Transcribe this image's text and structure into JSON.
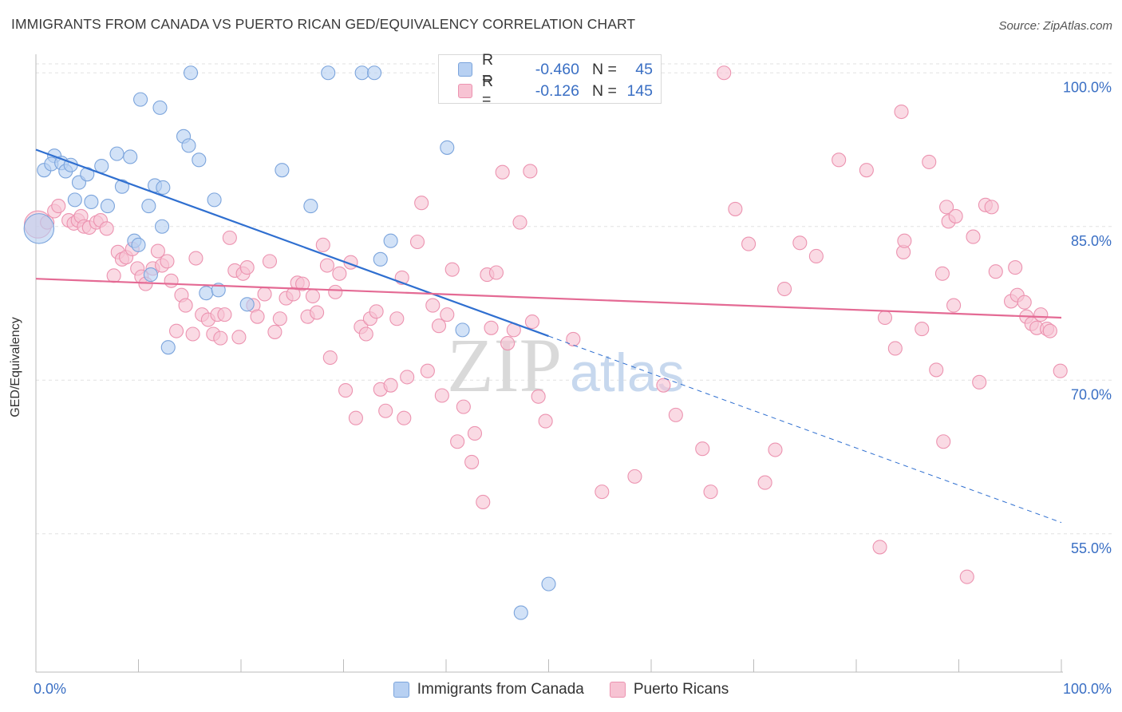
{
  "header": {
    "title": "IMMIGRANTS FROM CANADA VS PUERTO RICAN GED/EQUIVALENCY CORRELATION CHART",
    "source": "Source: ZipAtlas.com"
  },
  "watermark": {
    "zip": "ZIP",
    "atlas": "atlas"
  },
  "legend": {
    "rows": [
      {
        "r_label": "R =",
        "r_value": "-0.460",
        "n_label": "N =",
        "n_value": "45"
      },
      {
        "r_label": "R =",
        "r_value": "-0.126",
        "n_label": "N =",
        "n_value": "145"
      }
    ]
  },
  "bottom_legend": {
    "canada": "Immigrants from Canada",
    "puerto": "Puerto Ricans"
  },
  "colors": {
    "canada_fill": "#b7d0f2",
    "canada_stroke": "#7ba4dc",
    "canada_line": "#2f6fd0",
    "puerto_fill": "#f7c3d3",
    "puerto_stroke": "#ec93b0",
    "puerto_line": "#e46a94",
    "tick_text": "#3a6fc4",
    "grid": "#e2e2e2"
  },
  "chart_data": {
    "type": "scatter",
    "title": "IMMIGRANTS FROM CANADA VS PUERTO RICAN GED/EQUIVALENCY CORRELATION CHART",
    "xlabel": "",
    "ylabel": "GED/Equivalency",
    "xlim": [
      0,
      100
    ],
    "ylim": [
      41.5,
      101.5
    ],
    "x_tick_labels": [
      "0.0%",
      "100.0%"
    ],
    "y_ticks": [
      {
        "value": 100,
        "label": "100.0%"
      },
      {
        "value": 85,
        "label": "85.0%"
      },
      {
        "value": 70,
        "label": "70.0%"
      },
      {
        "value": 55,
        "label": "55.0%"
      }
    ],
    "grid": true,
    "legend_position": "top-center",
    "series": [
      {
        "name": "Immigrants from Canada",
        "color": "#b7d0f2",
        "trend": {
          "x0": 0,
          "y0": 92.5,
          "x1": 50,
          "y1": 74.3,
          "dashed_to_x": 100,
          "dashed_to_y": 56.1
        },
        "points": [
          [
            0.3,
            84.8,
            2.2
          ],
          [
            0.8,
            90.5,
            1
          ],
          [
            1.8,
            91.9,
            1
          ],
          [
            1.5,
            91.1,
            1
          ],
          [
            2.5,
            91.2,
            1
          ],
          [
            2.9,
            90.4,
            1
          ],
          [
            3.4,
            91.0,
            1
          ],
          [
            4.2,
            89.3,
            1
          ],
          [
            3.8,
            87.6,
            1
          ],
          [
            5.0,
            90.1,
            1
          ],
          [
            5.4,
            87.4,
            1
          ],
          [
            6.4,
            90.9,
            1
          ],
          [
            7.0,
            87.0,
            1
          ],
          [
            7.9,
            92.1,
            1
          ],
          [
            8.4,
            88.9,
            1
          ],
          [
            9.2,
            91.8,
            1
          ],
          [
            9.6,
            83.6,
            1
          ],
          [
            10.0,
            83.2,
            1
          ],
          [
            10.2,
            97.4,
            1
          ],
          [
            11.0,
            87.0,
            1
          ],
          [
            11.2,
            80.3,
            1
          ],
          [
            11.6,
            89.0,
            1
          ],
          [
            12.1,
            96.6,
            1
          ],
          [
            12.3,
            85.0,
            1
          ],
          [
            12.4,
            88.8,
            1
          ],
          [
            12.9,
            73.2,
            1
          ],
          [
            14.4,
            93.8,
            1
          ],
          [
            14.9,
            92.9,
            1
          ],
          [
            15.1,
            100.0,
            1
          ],
          [
            15.9,
            91.5,
            1
          ],
          [
            16.6,
            78.5,
            1
          ],
          [
            17.4,
            87.6,
            1
          ],
          [
            17.8,
            78.8,
            1
          ],
          [
            20.6,
            77.4,
            1
          ],
          [
            24.0,
            90.5,
            1
          ],
          [
            26.8,
            87.0,
            1
          ],
          [
            28.5,
            100.0,
            1
          ],
          [
            31.8,
            100.0,
            1
          ],
          [
            33.0,
            100.0,
            1
          ],
          [
            33.6,
            81.8,
            1
          ],
          [
            34.6,
            83.6,
            1
          ],
          [
            40.1,
            92.7,
            1
          ],
          [
            41.6,
            74.9,
            1
          ],
          [
            47.3,
            47.3,
            1
          ],
          [
            50.0,
            50.1,
            1
          ]
        ]
      },
      {
        "name": "Puerto Ricans",
        "color": "#f7c3d3",
        "trend": {
          "x0": 0,
          "y0": 79.9,
          "x1": 100,
          "y1": 76.1
        },
        "points": [
          [
            0.2,
            85.2,
            2.0
          ],
          [
            1.1,
            85.4,
            1
          ],
          [
            1.8,
            86.5,
            1
          ],
          [
            2.2,
            87.0,
            1
          ],
          [
            3.2,
            85.6,
            1
          ],
          [
            3.7,
            85.3,
            1
          ],
          [
            4.1,
            85.6,
            1
          ],
          [
            4.4,
            86.0,
            1
          ],
          [
            4.7,
            85.0,
            1
          ],
          [
            5.2,
            84.9,
            1
          ],
          [
            5.9,
            85.4,
            1
          ],
          [
            6.3,
            85.6,
            1
          ],
          [
            6.9,
            84.8,
            1
          ],
          [
            7.6,
            80.2,
            1
          ],
          [
            8.0,
            82.5,
            1
          ],
          [
            8.4,
            81.8,
            1
          ],
          [
            8.8,
            82.0,
            1
          ],
          [
            9.4,
            82.8,
            1
          ],
          [
            9.9,
            80.9,
            1
          ],
          [
            10.3,
            80.1,
            1
          ],
          [
            10.7,
            79.4,
            1
          ],
          [
            11.4,
            80.9,
            1
          ],
          [
            11.9,
            82.6,
            1
          ],
          [
            12.3,
            81.2,
            1
          ],
          [
            12.8,
            81.6,
            1
          ],
          [
            13.2,
            79.7,
            1
          ],
          [
            13.7,
            74.8,
            1
          ],
          [
            14.2,
            78.3,
            1
          ],
          [
            14.6,
            77.3,
            1
          ],
          [
            15.3,
            74.5,
            1
          ],
          [
            15.6,
            81.9,
            1
          ],
          [
            16.2,
            76.4,
            1
          ],
          [
            16.8,
            75.9,
            1
          ],
          [
            17.3,
            74.5,
            1
          ],
          [
            17.7,
            76.4,
            1
          ],
          [
            18.0,
            74.1,
            1
          ],
          [
            18.4,
            76.4,
            1
          ],
          [
            18.9,
            83.9,
            1
          ],
          [
            19.4,
            80.7,
            1
          ],
          [
            19.8,
            74.2,
            1
          ],
          [
            20.2,
            80.4,
            1
          ],
          [
            20.6,
            81.0,
            1
          ],
          [
            21.2,
            77.3,
            1
          ],
          [
            21.6,
            76.2,
            1
          ],
          [
            22.3,
            78.4,
            1
          ],
          [
            22.8,
            81.6,
            1
          ],
          [
            23.3,
            74.7,
            1
          ],
          [
            23.8,
            76.0,
            1
          ],
          [
            24.4,
            78.0,
            1
          ],
          [
            25.1,
            78.4,
            1
          ],
          [
            25.5,
            79.5,
            1
          ],
          [
            26.0,
            79.4,
            1
          ],
          [
            26.5,
            76.2,
            1
          ],
          [
            27.0,
            78.2,
            1
          ],
          [
            27.4,
            76.6,
            1
          ],
          [
            28.0,
            83.2,
            1
          ],
          [
            28.4,
            81.2,
            1
          ],
          [
            28.7,
            72.2,
            1
          ],
          [
            29.2,
            78.6,
            1
          ],
          [
            29.6,
            80.4,
            1
          ],
          [
            30.2,
            69.0,
            1
          ],
          [
            30.7,
            81.5,
            1
          ],
          [
            31.2,
            66.3,
            1
          ],
          [
            31.7,
            75.2,
            1
          ],
          [
            32.2,
            74.5,
            1
          ],
          [
            32.6,
            76.0,
            1
          ],
          [
            33.2,
            76.7,
            1
          ],
          [
            33.6,
            69.1,
            1
          ],
          [
            34.1,
            67.0,
            1
          ],
          [
            34.6,
            69.5,
            1
          ],
          [
            35.2,
            76.0,
            1
          ],
          [
            35.7,
            80.0,
            1
          ],
          [
            35.9,
            66.3,
            1
          ],
          [
            36.2,
            70.3,
            1
          ],
          [
            37.2,
            83.5,
            1
          ],
          [
            37.6,
            87.3,
            1
          ],
          [
            38.2,
            70.9,
            1
          ],
          [
            38.7,
            77.3,
            1
          ],
          [
            39.3,
            75.3,
            1
          ],
          [
            39.6,
            68.5,
            1
          ],
          [
            40.1,
            76.4,
            1
          ],
          [
            40.6,
            80.8,
            1
          ],
          [
            41.1,
            64.0,
            1
          ],
          [
            41.7,
            67.4,
            1
          ],
          [
            42.5,
            62.0,
            1
          ],
          [
            42.8,
            64.8,
            1
          ],
          [
            43.6,
            58.1,
            1
          ],
          [
            44.0,
            80.3,
            1
          ],
          [
            44.4,
            75.1,
            1
          ],
          [
            44.9,
            80.5,
            1
          ],
          [
            45.5,
            90.3,
            1
          ],
          [
            46.0,
            73.6,
            1
          ],
          [
            46.6,
            74.9,
            1
          ],
          [
            47.2,
            85.4,
            1
          ],
          [
            48.2,
            90.4,
            1
          ],
          [
            48.4,
            75.7,
            1
          ],
          [
            49.0,
            68.4,
            1
          ],
          [
            49.7,
            66.0,
            1
          ],
          [
            53.0,
            100.0,
            1
          ],
          [
            55.2,
            59.1,
            1
          ],
          [
            58.4,
            60.6,
            1
          ],
          [
            59.3,
            100.0,
            1
          ],
          [
            59.8,
            100.0,
            1
          ],
          [
            61.2,
            69.5,
            1
          ],
          [
            62.4,
            66.6,
            1
          ],
          [
            65.0,
            63.3,
            1
          ],
          [
            65.8,
            59.1,
            1
          ],
          [
            67.1,
            100.0,
            1
          ],
          [
            68.2,
            86.7,
            1
          ],
          [
            69.5,
            83.3,
            1
          ],
          [
            71.1,
            60.0,
            1
          ],
          [
            72.1,
            63.2,
            1
          ],
          [
            73.0,
            78.9,
            1
          ],
          [
            74.5,
            83.4,
            1
          ],
          [
            76.1,
            82.1,
            1
          ],
          [
            78.3,
            91.5,
            1
          ],
          [
            81.0,
            90.5,
            1
          ],
          [
            82.3,
            53.7,
            1
          ],
          [
            82.8,
            76.1,
            1
          ],
          [
            83.8,
            73.1,
            1
          ],
          [
            84.4,
            96.2,
            1
          ],
          [
            84.6,
            82.5,
            1
          ],
          [
            84.7,
            83.6,
            1
          ],
          [
            86.4,
            75.0,
            1
          ],
          [
            87.1,
            91.3,
            1
          ],
          [
            87.8,
            71.0,
            1
          ],
          [
            88.4,
            80.4,
            1
          ],
          [
            88.5,
            64.0,
            1
          ],
          [
            88.8,
            86.9,
            1
          ],
          [
            89.0,
            85.5,
            1
          ],
          [
            89.5,
            77.3,
            1
          ],
          [
            89.7,
            86.0,
            1
          ],
          [
            90.8,
            50.8,
            1
          ],
          [
            91.4,
            84.0,
            1
          ],
          [
            92.0,
            69.8,
            1
          ],
          [
            92.6,
            87.1,
            1
          ],
          [
            93.2,
            86.9,
            1
          ],
          [
            93.6,
            80.6,
            1
          ],
          [
            95.1,
            77.7,
            1
          ],
          [
            95.5,
            81.0,
            1
          ],
          [
            95.7,
            78.3,
            1
          ],
          [
            96.4,
            77.6,
            1
          ],
          [
            96.6,
            76.2,
            1
          ],
          [
            97.1,
            75.5,
            1
          ],
          [
            97.6,
            75.1,
            1
          ],
          [
            98.0,
            76.4,
            1
          ],
          [
            98.6,
            75.0,
            1
          ],
          [
            98.9,
            74.8,
            1
          ],
          [
            99.9,
            70.9,
            1
          ],
          [
            52.4,
            74.0,
            1
          ]
        ]
      }
    ]
  }
}
